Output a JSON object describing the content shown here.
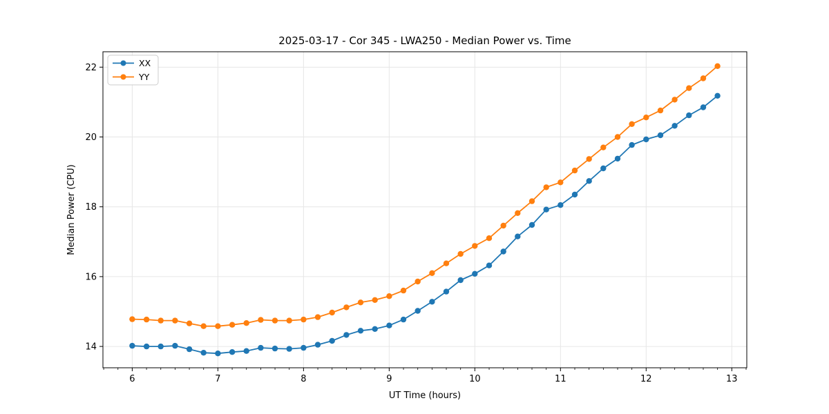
{
  "chart_data": {
    "type": "line",
    "title": "2025-03-17 - Cor 345 - LWA250 - Median Power vs. Time",
    "xlabel": "UT Time (hours)",
    "ylabel": "Median Power (CPU)",
    "grid": true,
    "legend_position": "upper left",
    "xlim": [
      5.658,
      13.175
    ],
    "ylim": [
      13.389,
      22.441
    ],
    "xticks": [
      6,
      7,
      8,
      9,
      10,
      11,
      12,
      13
    ],
    "yticks": [
      14,
      16,
      18,
      20,
      22
    ],
    "x_minor_step": 0.16667,
    "x": [
      6.0,
      6.1667,
      6.3333,
      6.5,
      6.6667,
      6.8333,
      7.0,
      7.1667,
      7.3333,
      7.5,
      7.6667,
      7.8333,
      8.0,
      8.1667,
      8.3333,
      8.5,
      8.6667,
      8.8333,
      9.0,
      9.1667,
      9.3333,
      9.5,
      9.6667,
      9.8333,
      10.0,
      10.1667,
      10.3333,
      10.5,
      10.6667,
      10.8333,
      11.0,
      11.1667,
      11.3333,
      11.5,
      11.6667,
      11.8333,
      12.0,
      12.1667,
      12.3333,
      12.5,
      12.6667,
      12.8333
    ],
    "series": [
      {
        "name": "XX",
        "color": "#1f77b4",
        "marker": "circle",
        "values": [
          14.02,
          14.0,
          14.0,
          14.02,
          13.92,
          13.82,
          13.8,
          13.84,
          13.87,
          13.96,
          13.94,
          13.93,
          13.96,
          14.05,
          14.16,
          14.33,
          14.45,
          14.5,
          14.6,
          14.77,
          15.02,
          15.28,
          15.57,
          15.9,
          16.08,
          16.32,
          16.72,
          17.15,
          17.48,
          17.92,
          18.05,
          18.35,
          18.74,
          19.1,
          19.38,
          19.77,
          19.93,
          20.05,
          20.32,
          20.62,
          20.85,
          21.18
        ]
      },
      {
        "name": "YY",
        "color": "#ff7f0e",
        "marker": "circle",
        "values": [
          14.78,
          14.77,
          14.74,
          14.74,
          14.66,
          14.58,
          14.58,
          14.62,
          14.67,
          14.76,
          14.74,
          14.74,
          14.77,
          14.84,
          14.97,
          15.12,
          15.26,
          15.33,
          15.44,
          15.6,
          15.86,
          16.1,
          16.38,
          16.65,
          16.88,
          17.1,
          17.46,
          17.82,
          18.16,
          18.56,
          18.7,
          19.04,
          19.37,
          19.7,
          20.0,
          20.37,
          20.56,
          20.76,
          21.07,
          21.4,
          21.68,
          22.03
        ]
      }
    ],
    "style": {
      "grid_color": "#e6e6e6",
      "spine_color": "#000000",
      "background": "#ffffff",
      "legend_border": "#cccccc"
    }
  }
}
